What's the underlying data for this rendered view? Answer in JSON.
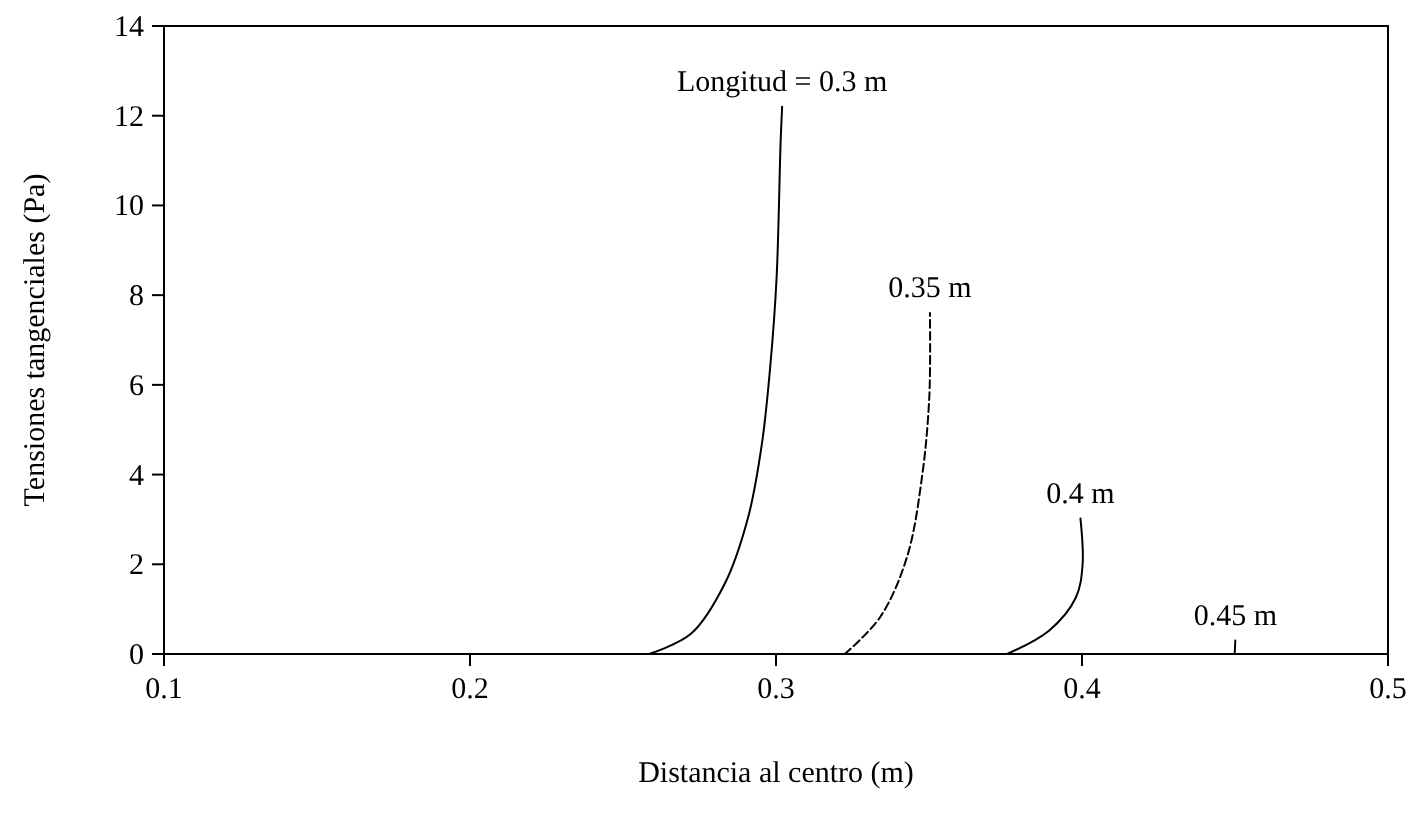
{
  "chart_data": {
    "type": "line",
    "xlabel": "Distancia al centro (m)",
    "ylabel": "Tensiones tangenciales (Pa)",
    "xlim": [
      0.1,
      0.5
    ],
    "xticks": [
      0.1,
      0.2,
      0.3,
      0.4,
      0.5
    ],
    "ylim": [
      0,
      14
    ],
    "yticks": [
      0,
      2,
      4,
      6,
      8,
      10,
      12,
      14
    ],
    "grid": false,
    "marker": "none",
    "series": [
      {
        "color": "#000000",
        "line_style": "solid",
        "x": [
          0.2585,
          0.2722,
          0.2832,
          0.2909,
          0.2954,
          0.2982,
          0.3002,
          0.3015,
          0.302
        ],
        "values": [
          0,
          0.45,
          1.56,
          3.05,
          4.69,
          6.47,
          8.4,
          11.4,
          12.2
        ]
      },
      {
        "color": "#000000",
        "line_style": "dashed",
        "x": [
          0.3225,
          0.334,
          0.3428,
          0.3477,
          0.3501,
          0.3503
        ],
        "values": [
          0,
          0.82,
          2.16,
          3.94,
          5.73,
          7.6
        ]
      },
      {
        "color": "#000000",
        "line_style": "solid",
        "x": [
          0.3755,
          0.3892,
          0.398,
          0.4002,
          0.3995
        ],
        "values": [
          0,
          0.52,
          1.26,
          2.0,
          3.02
        ]
      },
      {
        "color": "#000000",
        "line_style": "solid",
        "x": [
          0.4499,
          0.45,
          0.4501
        ],
        "values": [
          0,
          0.15,
          0.3
        ]
      }
    ],
    "annotations": [
      {
        "text": "Longitud = 0.3 m",
        "x": 0.302,
        "y": 12.2
      },
      {
        "text": "0.35 m",
        "x": 0.3503,
        "y": 7.6
      },
      {
        "text": "0.4 m",
        "x": 0.3995,
        "y": 3.02
      },
      {
        "text": "0.45 m",
        "x": 0.4501,
        "y": 0.3
      }
    ]
  }
}
